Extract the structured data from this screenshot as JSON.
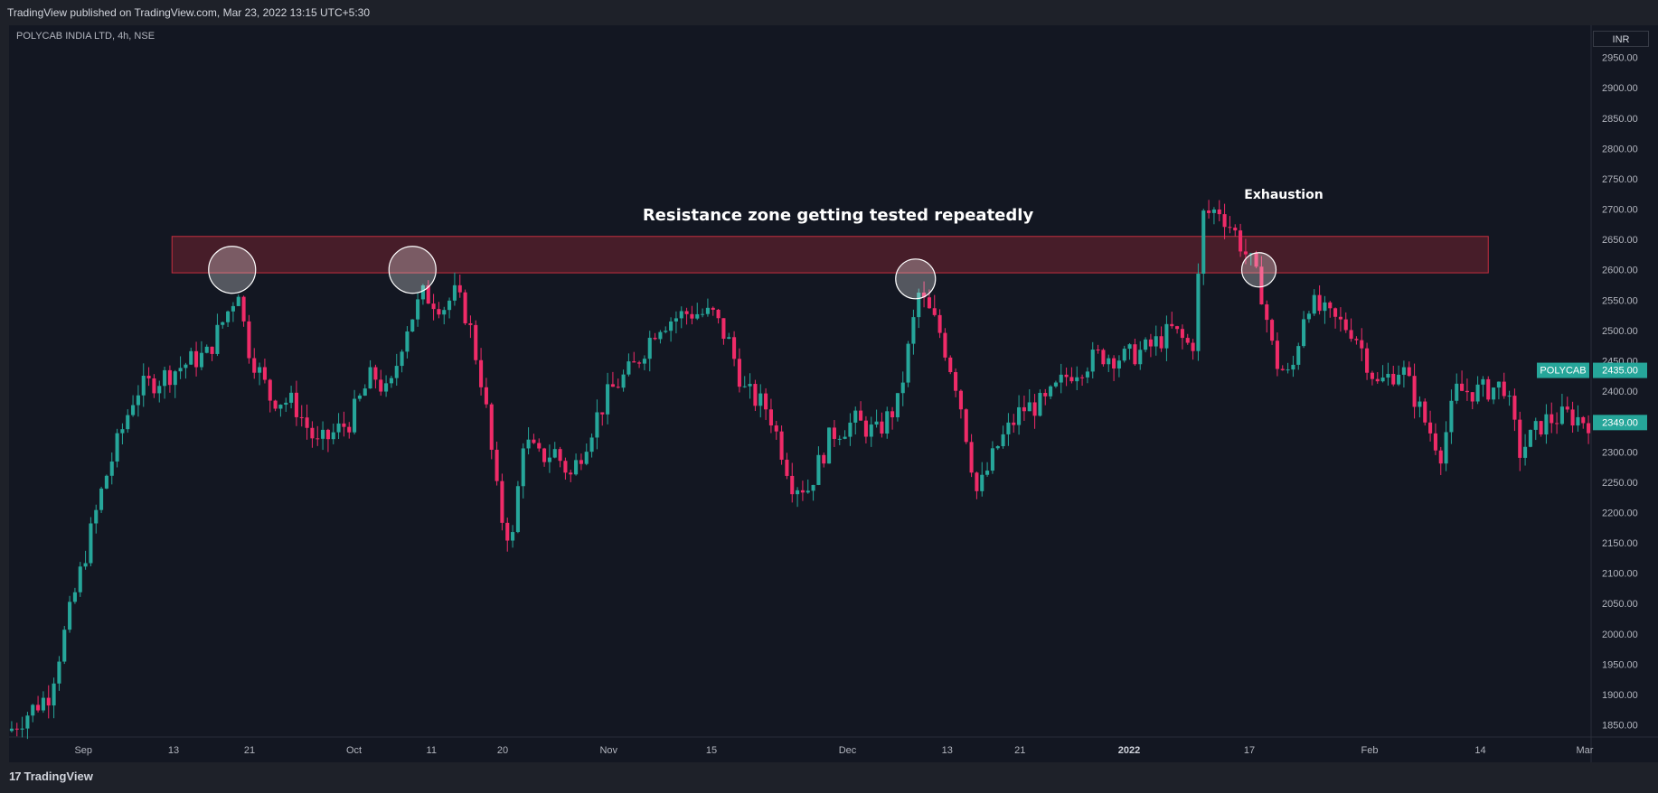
{
  "header": {
    "published": "TradingView published on TradingView.com, Mar 23, 2022 13:15 UTC+5:30"
  },
  "symbol": "POLYCAB INDIA LTD, 4h, NSE",
  "currency": "INR",
  "footer": {
    "logo_mark": "17",
    "logo_text": "TradingView"
  },
  "colors": {
    "bull": "#26a69a",
    "bear": "#ef2b68",
    "zone_fill": "#4a1d2a",
    "zone_border": "#c62f3f",
    "price_tag": "#26a69a"
  },
  "annotations": {
    "resistance": "Resistance zone getting tested repeatedly",
    "exhaustion": "Exhaustion"
  },
  "chart_data": {
    "type": "candlestick",
    "title": "POLYCAB INDIA LTD, 4h, NSE",
    "ylim": [
      1830,
      3000
    ],
    "y_ticks": [
      1850,
      1900,
      1950,
      2000,
      2050,
      2100,
      2150,
      2200,
      2250,
      2300,
      2350,
      2400,
      2450,
      2500,
      2550,
      2600,
      2650,
      2700,
      2750,
      2800,
      2850,
      2900,
      2950
    ],
    "y_tick_labels": [
      "1850.00",
      "1900.00",
      "1950.00",
      "2000.00",
      "2050.00",
      "2100.00",
      "2150.00",
      "2200.00",
      "2250.00",
      "2300.00",
      "2350.00",
      "2400.00",
      "2450.00",
      "2500.00",
      "2550.00",
      "2600.00",
      "2650.00",
      "2700.00",
      "2750.00",
      "2800.00",
      "2850.00",
      "2900.00",
      "2950.00"
    ],
    "x_ticks": [
      {
        "label": "Sep",
        "x": 0.047,
        "bold": false
      },
      {
        "label": "13",
        "x": 0.104,
        "bold": false
      },
      {
        "label": "21",
        "x": 0.152,
        "bold": false
      },
      {
        "label": "Oct",
        "x": 0.218,
        "bold": false
      },
      {
        "label": "11",
        "x": 0.267,
        "bold": false
      },
      {
        "label": "20",
        "x": 0.312,
        "bold": false
      },
      {
        "label": "Nov",
        "x": 0.379,
        "bold": false
      },
      {
        "label": "15",
        "x": 0.444,
        "bold": false
      },
      {
        "label": "Dec",
        "x": 0.53,
        "bold": false
      },
      {
        "label": "13",
        "x": 0.593,
        "bold": false
      },
      {
        "label": "21",
        "x": 0.639,
        "bold": false
      },
      {
        "label": "2022",
        "x": 0.708,
        "bold": true
      },
      {
        "label": "17",
        "x": 0.784,
        "bold": false
      },
      {
        "label": "Feb",
        "x": 0.86,
        "bold": false
      },
      {
        "label": "14",
        "x": 0.93,
        "bold": false
      },
      {
        "label": "Mar",
        "x": 0.996,
        "bold": false
      }
    ],
    "resistance_zone": {
      "low": 2595,
      "high": 2655,
      "x_start": 0.103,
      "x_end": 0.935
    },
    "circles": [
      {
        "x": 0.141,
        "price": 2600,
        "r_px": 26
      },
      {
        "x": 0.255,
        "price": 2600,
        "r_px": 26
      },
      {
        "x": 0.573,
        "price": 2585,
        "r_px": 22
      },
      {
        "x": 0.79,
        "price": 2600,
        "r_px": 19
      }
    ],
    "price_tags": [
      {
        "label": "POLYCAB",
        "value": "2435.00",
        "price": 2435
      },
      {
        "label": "",
        "value": "2349.00",
        "price": 2349
      }
    ],
    "anchors": [
      [
        0.0,
        1840
      ],
      [
        0.01,
        1865
      ],
      [
        0.025,
        1900
      ],
      [
        0.045,
        2100
      ],
      [
        0.06,
        2250
      ],
      [
        0.08,
        2400
      ],
      [
        0.095,
        2420
      ],
      [
        0.115,
        2450
      ],
      [
        0.125,
        2460
      ],
      [
        0.138,
        2530
      ],
      [
        0.145,
        2570
      ],
      [
        0.15,
        2480
      ],
      [
        0.165,
        2390
      ],
      [
        0.18,
        2380
      ],
      [
        0.195,
        2310
      ],
      [
        0.215,
        2350
      ],
      [
        0.23,
        2430
      ],
      [
        0.24,
        2390
      ],
      [
        0.25,
        2500
      ],
      [
        0.262,
        2560
      ],
      [
        0.275,
        2540
      ],
      [
        0.282,
        2560
      ],
      [
        0.29,
        2520
      ],
      [
        0.3,
        2400
      ],
      [
        0.31,
        2200
      ],
      [
        0.318,
        2150
      ],
      [
        0.325,
        2320
      ],
      [
        0.335,
        2290
      ],
      [
        0.345,
        2300
      ],
      [
        0.355,
        2260
      ],
      [
        0.37,
        2350
      ],
      [
        0.38,
        2400
      ],
      [
        0.395,
        2440
      ],
      [
        0.41,
        2510
      ],
      [
        0.43,
        2530
      ],
      [
        0.445,
        2525
      ],
      [
        0.455,
        2480
      ],
      [
        0.465,
        2400
      ],
      [
        0.48,
        2370
      ],
      [
        0.495,
        2250
      ],
      [
        0.505,
        2240
      ],
      [
        0.52,
        2330
      ],
      [
        0.535,
        2350
      ],
      [
        0.548,
        2330
      ],
      [
        0.562,
        2380
      ],
      [
        0.575,
        2560
      ],
      [
        0.588,
        2500
      ],
      [
        0.6,
        2400
      ],
      [
        0.612,
        2230
      ],
      [
        0.625,
        2310
      ],
      [
        0.64,
        2370
      ],
      [
        0.655,
        2380
      ],
      [
        0.67,
        2430
      ],
      [
        0.69,
        2460
      ],
      [
        0.705,
        2455
      ],
      [
        0.72,
        2470
      ],
      [
        0.735,
        2500
      ],
      [
        0.748,
        2470
      ],
      [
        0.755,
        2690
      ],
      [
        0.765,
        2700
      ],
      [
        0.775,
        2660
      ],
      [
        0.785,
        2610
      ],
      [
        0.792,
        2560
      ],
      [
        0.8,
        2450
      ],
      [
        0.81,
        2420
      ],
      [
        0.82,
        2550
      ],
      [
        0.835,
        2520
      ],
      [
        0.85,
        2500
      ],
      [
        0.865,
        2410
      ],
      [
        0.88,
        2440
      ],
      [
        0.895,
        2350
      ],
      [
        0.905,
        2300
      ],
      [
        0.915,
        2400
      ],
      [
        0.93,
        2400
      ],
      [
        0.945,
        2410
      ],
      [
        0.955,
        2300
      ],
      [
        0.97,
        2350
      ],
      [
        0.985,
        2360
      ],
      [
        1.0,
        2349
      ]
    ]
  }
}
